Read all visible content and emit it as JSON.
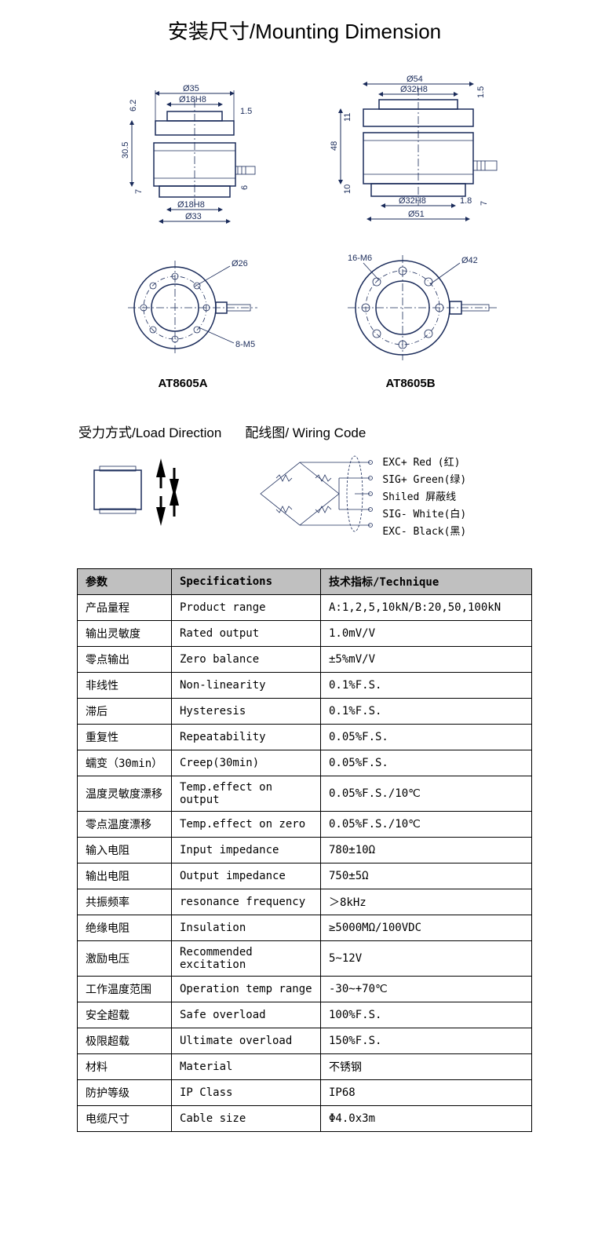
{
  "main_title": "安装尺寸/Mounting Dimension",
  "models": {
    "a": "AT8605A",
    "b": "AT8605B"
  },
  "drawing_a": {
    "dims": {
      "d35": "Ø35",
      "d18h8_top": "Ø18H8",
      "h1_5": "1.5",
      "h6_2": "6.2",
      "h30_5": "30.5",
      "h7": "7",
      "h6": "6",
      "d18h8_bot": "Ø18H8",
      "d33": "Ø33",
      "d26": "Ø26",
      "holes": "8-M5"
    }
  },
  "drawing_b": {
    "dims": {
      "d54": "Ø54",
      "d32h8_top": "Ø32H8",
      "h1_5": "1.5",
      "h11": "11",
      "h48": "48",
      "h10": "10",
      "h1_8": "1.8",
      "h7": "7",
      "d32h8_bot": "Ø32H8",
      "d51": "Ø51",
      "holes": "16-M6",
      "d42": "Ø42"
    }
  },
  "load_dir": {
    "title": "受力方式/Load Direction"
  },
  "wiring": {
    "title": "配线图/ Wiring Code",
    "lines": [
      "EXC+ Red  (红)",
      "SIG+ Green(绿)",
      "Shiled  屏蔽线",
      "SIG- White(白)",
      "EXC- Black(黑)"
    ]
  },
  "table": {
    "headers": [
      "参数",
      "Specifications",
      "技术指标/Technique"
    ],
    "rows": [
      [
        "产品量程",
        "Product range",
        "A:1,2,5,10kN/B:20,50,100kN"
      ],
      [
        "输出灵敏度",
        "Rated output",
        "1.0mV/V"
      ],
      [
        "零点输出",
        "Zero balance",
        "±5%mV/V"
      ],
      [
        "非线性",
        "Non-linearity",
        "0.1%F.S."
      ],
      [
        "滞后",
        "Hysteresis",
        "0.1%F.S."
      ],
      [
        "重复性",
        "Repeatability",
        "0.05%F.S."
      ],
      [
        "蠕变（30min）",
        "Creep(30min)",
        "0.05%F.S."
      ],
      [
        "温度灵敏度漂移",
        "Temp.effect on output",
        "0.05%F.S./10℃"
      ],
      [
        "零点温度漂移",
        "Temp.effect on zero",
        "0.05%F.S./10℃"
      ],
      [
        "输入电阻",
        "Input impedance",
        "780±10Ω"
      ],
      [
        "输出电阻",
        "Output impedance",
        "750±5Ω"
      ],
      [
        "共振频率",
        "resonance frequency",
        "＞8kHz"
      ],
      [
        "绝缘电阻",
        "Insulation",
        "≥5000MΩ/100VDC"
      ],
      [
        "激励电压",
        "Recommended excitation",
        "5~12V"
      ],
      [
        "工作温度范围",
        "Operation temp range",
        "-30~+70℃"
      ],
      [
        "安全超载",
        "Safe overload",
        "100%F.S."
      ],
      [
        "极限超载",
        "Ultimate overload",
        "150%F.S."
      ],
      [
        "材料",
        "Material",
        "不锈钢"
      ],
      [
        "防护等级",
        "IP Class",
        "IP68"
      ],
      [
        "电缆尺寸",
        "Cable size",
        "Φ4.0x3m"
      ]
    ]
  },
  "colors": {
    "drawing": "#1a2b5a",
    "table_header_bg": "#c0c0c0",
    "border": "#000000"
  }
}
